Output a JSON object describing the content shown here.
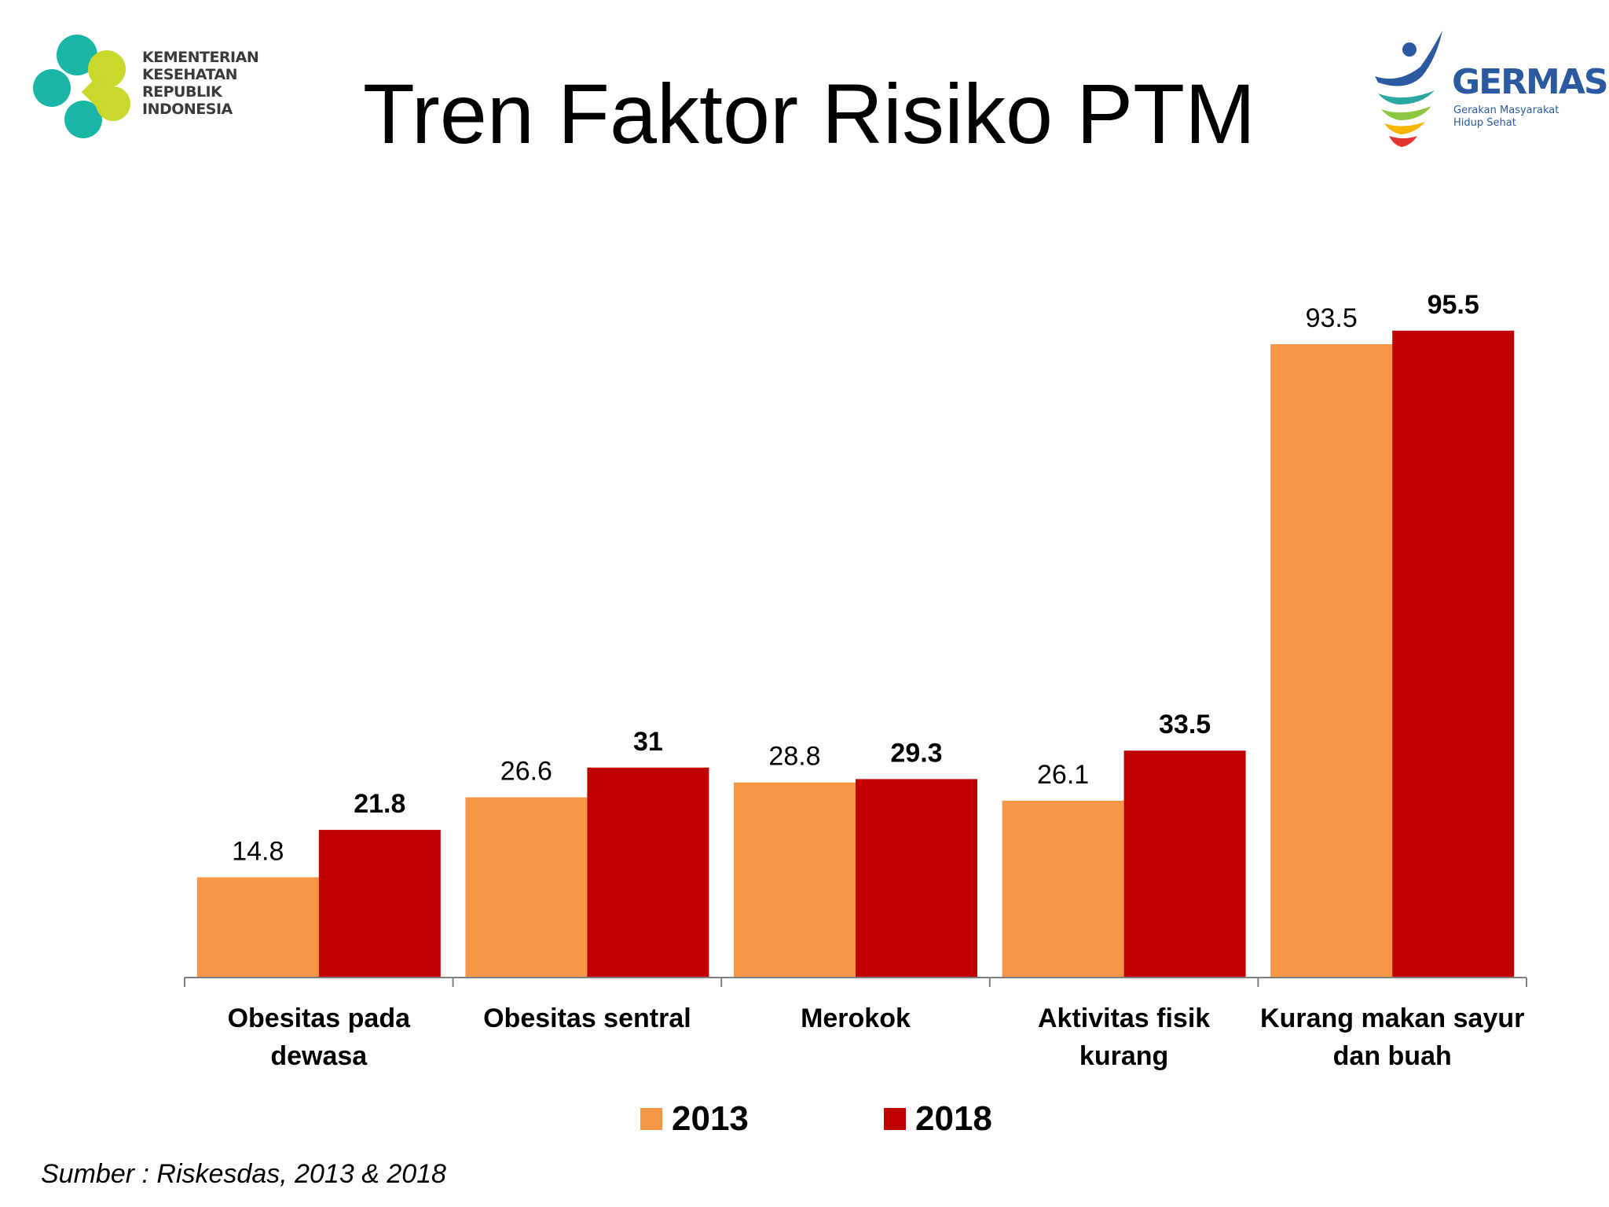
{
  "logo_left": {
    "lines": [
      "KEMENTERIAN",
      "KESEHATAN",
      "REPUBLIK",
      "INDONESIA"
    ]
  },
  "logo_right": {
    "word": "GERMAS",
    "tagline_lines": [
      "Gerakan Masyarakat",
      "Hidup Sehat"
    ]
  },
  "title": "Tren Faktor Risiko PTM",
  "source": "Sumber : Riskesdas, 2013 & 2018",
  "chart_data": {
    "type": "bar",
    "title": "Tren Faktor Risiko PTM",
    "categories": [
      [
        "Obesitas pada",
        "dewasa"
      ],
      [
        "Obesitas sentral"
      ],
      [
        "Merokok"
      ],
      [
        "Aktivitas fisik",
        "kurang"
      ],
      [
        "Kurang makan sayur",
        "dan buah"
      ]
    ],
    "series": [
      {
        "name": "2013",
        "color": "#F79646",
        "values": [
          14.8,
          26.6,
          28.8,
          26.1,
          93.5
        ],
        "labels": [
          "14.8",
          "26.6",
          "28.8",
          "26.1",
          "93.5"
        ],
        "label_bold": false
      },
      {
        "name": "2018",
        "color": "#C00000",
        "values": [
          21.8,
          31,
          29.3,
          33.5,
          95.5
        ],
        "labels": [
          "21.8",
          "31",
          "29.3",
          "33.5",
          "95.5"
        ],
        "label_bold": true
      }
    ],
    "ylim": [
      0,
      100
    ],
    "grid": false,
    "legend_position": "bottom",
    "xlabel": "",
    "ylabel": ""
  }
}
